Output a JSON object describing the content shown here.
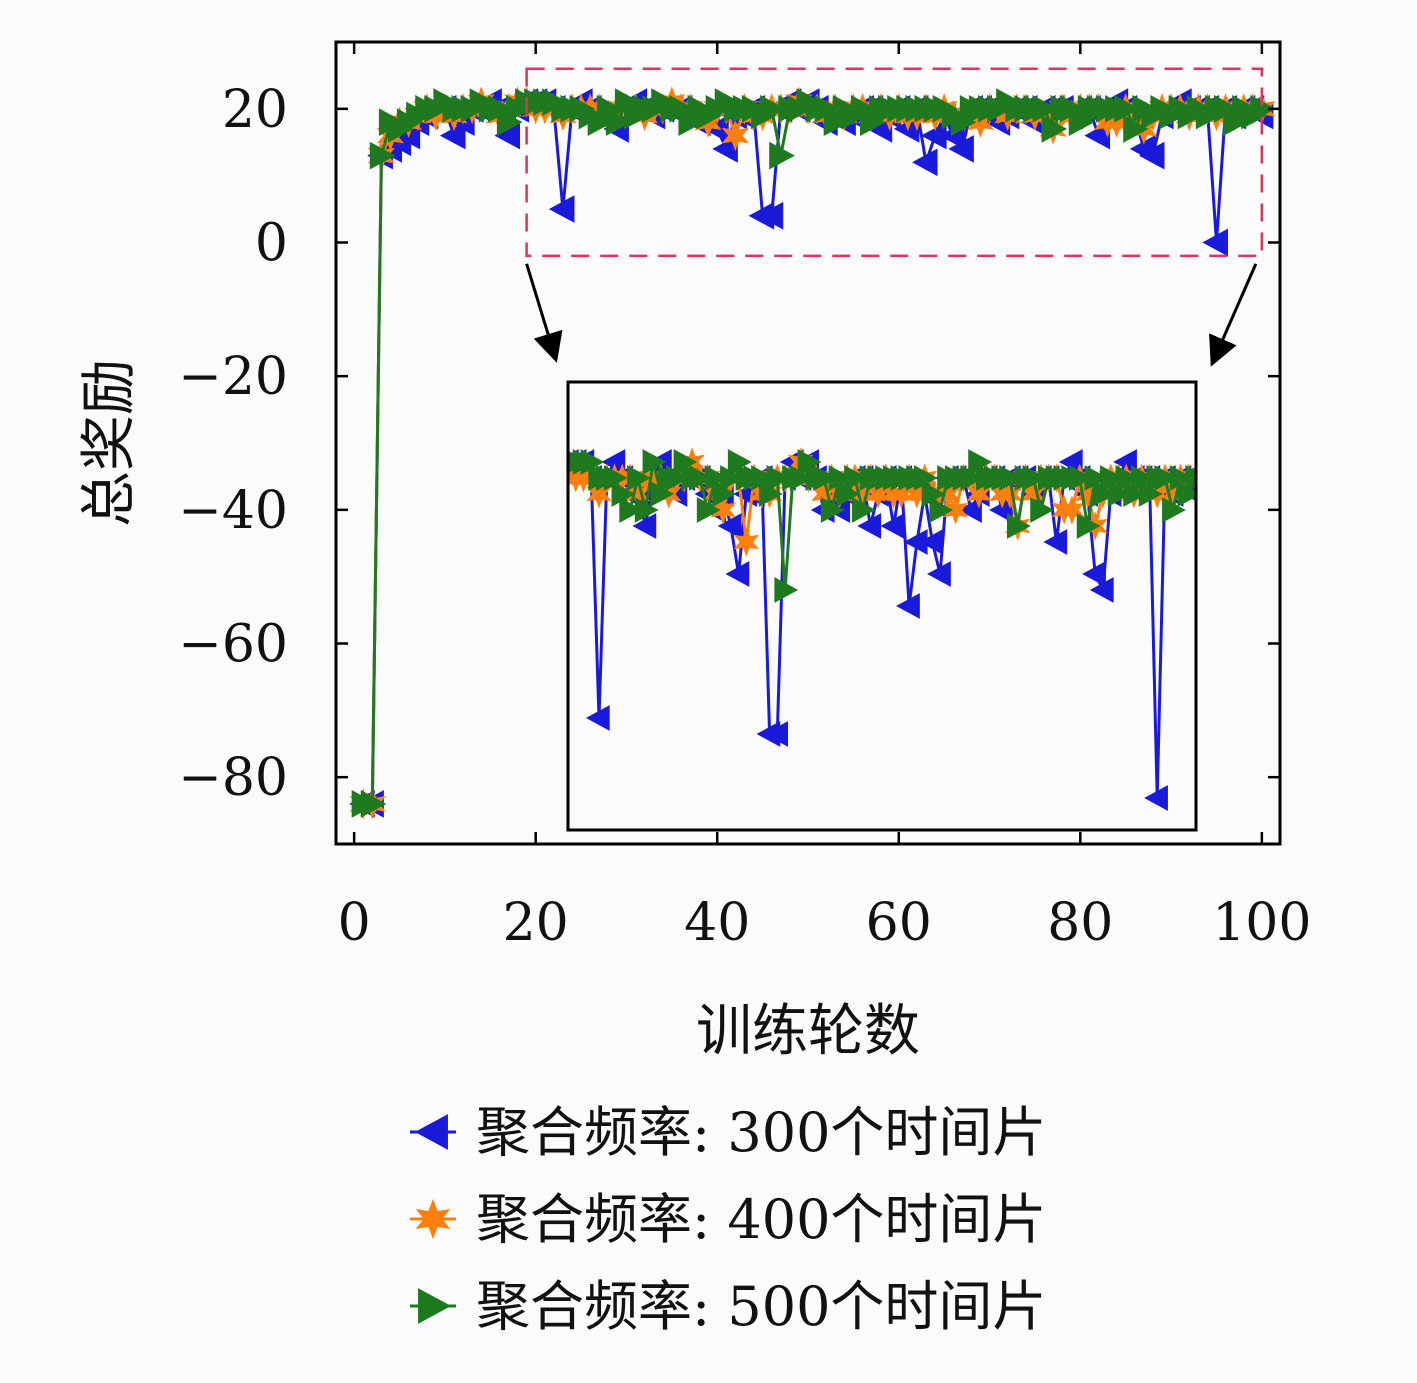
{
  "chart_data": {
    "type": "line",
    "xlabel": "训练轮数",
    "ylabel": "总奖励",
    "xlim": [
      -2,
      102
    ],
    "ylim": [
      -90,
      30
    ],
    "xticks": [
      0,
      20,
      40,
      60,
      80,
      100
    ],
    "yticks": [
      20,
      0,
      -20,
      -40,
      -60,
      -80
    ],
    "xtick_labels": [
      "0",
      "20",
      "40",
      "60",
      "80",
      "100"
    ],
    "ytick_labels": [
      "20",
      "0",
      "−20",
      "−40",
      "−60",
      "−80"
    ],
    "legend_position": "bottom",
    "zoom_region": {
      "x": [
        19,
        100
      ],
      "y": [
        -2,
        26
      ]
    },
    "series": [
      {
        "name": "聚合频率: 300个时间片",
        "color": "#1a1adb",
        "marker": "triangle-left",
        "x": [
          1,
          2,
          3,
          4,
          5,
          6,
          7,
          8,
          9,
          10,
          11,
          12,
          13,
          14,
          15,
          16,
          17,
          18,
          19,
          20,
          21,
          22,
          23,
          24,
          25,
          26,
          27,
          28,
          29,
          30,
          31,
          32,
          33,
          34,
          35,
          36,
          37,
          38,
          39,
          40,
          41,
          42,
          43,
          44,
          45,
          46,
          47,
          48,
          49,
          50,
          51,
          52,
          53,
          54,
          55,
          56,
          57,
          58,
          59,
          60,
          61,
          62,
          63,
          64,
          65,
          66,
          67,
          68,
          69,
          70,
          71,
          72,
          73,
          74,
          75,
          76,
          77,
          78,
          79,
          80,
          81,
          82,
          83,
          84,
          85,
          86,
          87,
          88,
          89,
          90,
          91,
          92,
          93,
          94,
          95,
          96,
          97,
          98,
          99,
          100
        ],
        "values": [
          -84,
          -84,
          13,
          14,
          15,
          16,
          18,
          19,
          20,
          20,
          16,
          18,
          20,
          20,
          21,
          20,
          16,
          20,
          21,
          21,
          21,
          20,
          5,
          20,
          21,
          20,
          19,
          19,
          17,
          20,
          21,
          20,
          19,
          20,
          20,
          20,
          19,
          18,
          19,
          17,
          14,
          19,
          19,
          20,
          4,
          4,
          20,
          21,
          20,
          21,
          20,
          18,
          19,
          18,
          19,
          20,
          20,
          17,
          19,
          20,
          17,
          20,
          12,
          16,
          19,
          16,
          14,
          20,
          20,
          20,
          18,
          19,
          20,
          20,
          18,
          20,
          20,
          20,
          19,
          20,
          20,
          16,
          20,
          21,
          20,
          19,
          14,
          13,
          19,
          20,
          21,
          20,
          20,
          20,
          0,
          20,
          19,
          20,
          20,
          19
        ]
      },
      {
        "name": "聚合频率: 400个时间片",
        "color": "#ff7f0e",
        "marker": "star",
        "x": [
          1,
          2,
          3,
          4,
          5,
          6,
          7,
          8,
          9,
          10,
          11,
          12,
          13,
          14,
          15,
          16,
          17,
          18,
          19,
          20,
          21,
          22,
          23,
          24,
          25,
          26,
          27,
          28,
          29,
          30,
          31,
          32,
          33,
          34,
          35,
          36,
          37,
          38,
          39,
          40,
          41,
          42,
          43,
          44,
          45,
          46,
          47,
          48,
          49,
          50,
          51,
          52,
          53,
          54,
          55,
          56,
          57,
          58,
          59,
          60,
          61,
          62,
          63,
          64,
          65,
          66,
          67,
          68,
          69,
          70,
          71,
          72,
          73,
          74,
          75,
          76,
          77,
          78,
          79,
          80,
          81,
          82,
          83,
          84,
          85,
          86,
          87,
          88,
          89,
          90,
          91,
          92,
          93,
          94,
          95,
          96,
          97,
          98,
          99,
          100
        ],
        "values": [
          -84,
          -84,
          13,
          16,
          18,
          18,
          19,
          20,
          19,
          20,
          19,
          20,
          20,
          21,
          20,
          19,
          20,
          21,
          21,
          20,
          20,
          20,
          19,
          20,
          20,
          20,
          20,
          19,
          20,
          20,
          20,
          19,
          20,
          20,
          21,
          20,
          20,
          19,
          18,
          20,
          20,
          16,
          20,
          19,
          19,
          20,
          20,
          20,
          21,
          20,
          20,
          19,
          20,
          19,
          20,
          20,
          19,
          20,
          19,
          20,
          19,
          19,
          20,
          19,
          20,
          19,
          19,
          19,
          18,
          20,
          20,
          19,
          20,
          20,
          19,
          19,
          17,
          20,
          19,
          20,
          20,
          20,
          18,
          18,
          20,
          19,
          17,
          19,
          20,
          20,
          20,
          19,
          20,
          20,
          19,
          20,
          19,
          20,
          20,
          20
        ]
      },
      {
        "name": "聚合频率: 500个时间片",
        "color": "#1f7a1f",
        "marker": "triangle-right",
        "x": [
          1,
          2,
          3,
          4,
          5,
          6,
          7,
          8,
          9,
          10,
          11,
          12,
          13,
          14,
          15,
          16,
          17,
          18,
          19,
          20,
          21,
          22,
          23,
          24,
          25,
          26,
          27,
          28,
          29,
          30,
          31,
          32,
          33,
          34,
          35,
          36,
          37,
          38,
          39,
          40,
          41,
          42,
          43,
          44,
          45,
          46,
          47,
          48,
          49,
          50,
          51,
          52,
          53,
          54,
          55,
          56,
          57,
          58,
          59,
          60,
          61,
          62,
          63,
          64,
          65,
          66,
          67,
          68,
          69,
          70,
          71,
          72,
          73,
          74,
          75,
          76,
          77,
          78,
          79,
          80,
          81,
          82,
          83,
          84,
          85,
          86,
          87,
          88,
          89,
          90,
          91,
          92,
          93,
          94,
          95,
          96,
          97,
          98,
          99,
          100
        ],
        "values": [
          -84,
          -84,
          13,
          18,
          17,
          18,
          19,
          20,
          20,
          21,
          20,
          20,
          20,
          21,
          20,
          20,
          18,
          20,
          21,
          21,
          21,
          21,
          20,
          20,
          20,
          19,
          18,
          20,
          18,
          21,
          19,
          20,
          20,
          21,
          20,
          20,
          18,
          20,
          19,
          20,
          21,
          20,
          20,
          20,
          19,
          20,
          13,
          20,
          20,
          21,
          20,
          20,
          18,
          20,
          19,
          20,
          18,
          20,
          20,
          20,
          20,
          20,
          20,
          20,
          20,
          19,
          18,
          20,
          20,
          20,
          20,
          21,
          20,
          20,
          20,
          20,
          17,
          20,
          20,
          18,
          20,
          20,
          20,
          20,
          20,
          17,
          20,
          19,
          20,
          19,
          20,
          19,
          20,
          19,
          20,
          20,
          18,
          20,
          19,
          20
        ]
      }
    ]
  }
}
